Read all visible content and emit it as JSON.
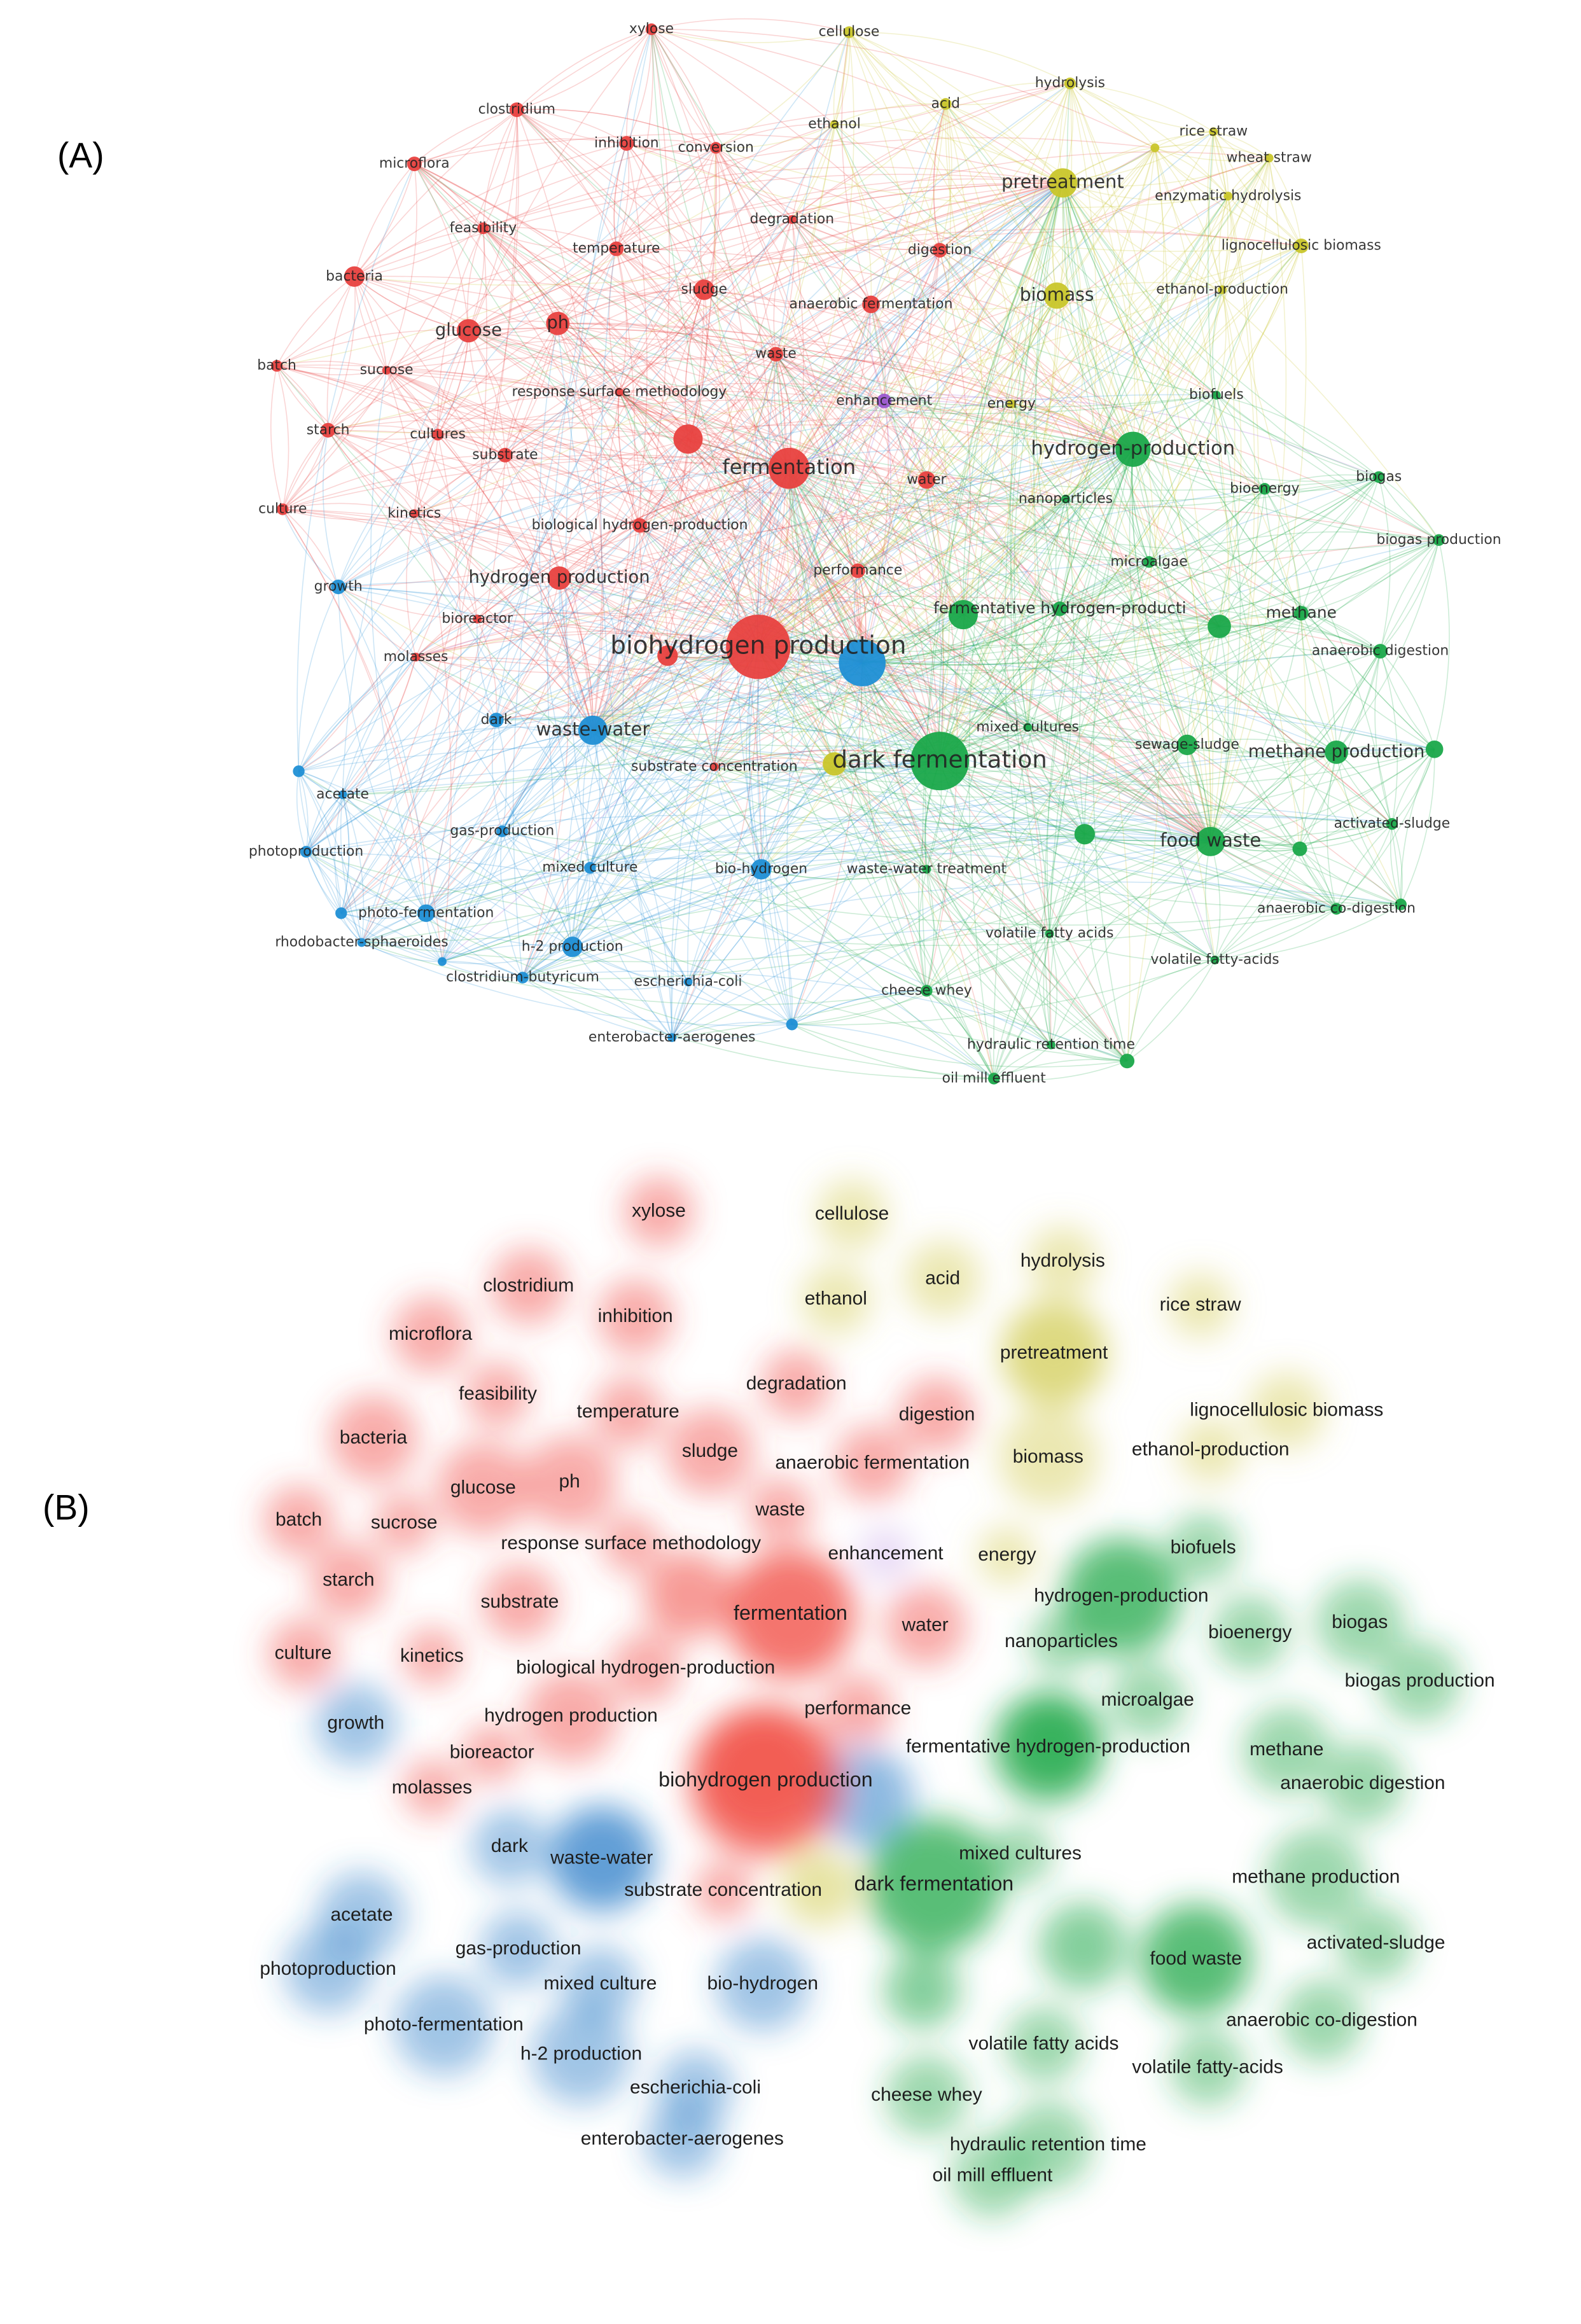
{
  "panels": [
    {
      "label": "(A)",
      "clusters": [
        {
          "color": "#e8413f",
          "nodes": [
            "xylose",
            "clostridium",
            "microflora",
            "inhibition",
            "conversion",
            "feasibility",
            "temperature",
            "bacteria",
            "glucose",
            "ph",
            "sludge",
            "digestion",
            "degradation",
            "anaerobic fermentation",
            "waste",
            "batch",
            "sucrose",
            "response surface methodology",
            "starch",
            "cultures",
            "substrate",
            "fermentation",
            "water",
            "culture",
            "kinetics",
            "biological hydrogen-production",
            "performance",
            "hydrogen production",
            "bioreactor",
            "molasses",
            "biohydrogen production",
            "substrate concentration"
          ]
        },
        {
          "color": "#1f8fd5",
          "nodes": [
            "growth",
            "dark",
            "waste-water",
            "acetate",
            "photoproduction",
            "gas-production",
            "mixed culture",
            "bio-hydrogen",
            "photo-fermentation",
            "rhodobacter-sphaeroides",
            "h-2 production",
            "clostridium-butyricum",
            "escherichia-coli",
            "enterobacter-aerogenes"
          ]
        },
        {
          "color": "#c9c62b",
          "nodes": [
            "cellulose",
            "hydrolysis",
            "acid",
            "ethanol",
            "rice straw",
            "wheat straw",
            "pretreatment",
            "enzymatic hydrolysis",
            "lignocellulosic biomass",
            "biomass",
            "ethanol-production",
            "energy"
          ]
        },
        {
          "color": "#9b59d0",
          "nodes": [
            "enhancement"
          ]
        },
        {
          "color": "#1aa84a",
          "nodes": [
            "biofuels",
            "hydrogen-production",
            "biogas",
            "bioenergy",
            "nanoparticles",
            "biogas production",
            "microalgae",
            "fermentative hydrogen-producti",
            "methane",
            "anaerobic digestion",
            "mixed cultures",
            "dark fermentation",
            "sewage-sludge",
            "methane production",
            "activated-sludge",
            "food waste",
            "waste-water treatment",
            "anaerobic co-digestion",
            "volatile fatty acids",
            "volatile fatty-acids",
            "cheese whey",
            "hydraulic retention time",
            "oil mill effluent"
          ]
        }
      ]
    },
    {
      "label": "(B)",
      "clusters": [
        {
          "color": "#f0483f",
          "nodes": [
            "xylose",
            "clostridium",
            "microflora",
            "inhibition",
            "feasibility",
            "degradation",
            "temperature",
            "digestion",
            "bacteria",
            "glucose",
            "ph",
            "sludge",
            "anaerobic fermentation",
            "waste",
            "batch",
            "sucrose",
            "response surface methodology",
            "starch",
            "substrate",
            "fermentation",
            "water",
            "culture",
            "kinetics",
            "biological hydrogen-production",
            "hydrogen production",
            "performance",
            "bioreactor",
            "molasses",
            "biohydrogen production",
            "substrate concentration"
          ]
        },
        {
          "color": "#2f7fc8",
          "nodes": [
            "growth",
            "dark",
            "waste-water",
            "acetate",
            "photoproduction",
            "gas-production",
            "mixed culture",
            "bio-hydrogen",
            "photo-fermentation",
            "h-2 production",
            "escherichia-coli",
            "enterobacter-aerogenes"
          ]
        },
        {
          "color": "#d2cc55",
          "nodes": [
            "cellulose",
            "hydrolysis",
            "acid",
            "ethanol",
            "rice straw",
            "pretreatment",
            "lignocellulosic biomass",
            "biomass",
            "ethanol-production",
            "energy"
          ]
        },
        {
          "color": "#c9a8e8",
          "nodes": [
            "enhancement"
          ]
        },
        {
          "color": "#1fa84a",
          "nodes": [
            "biofuels",
            "hydrogen-production",
            "biogas",
            "bioenergy",
            "nanoparticles",
            "biogas production",
            "microalgae",
            "fermentative hydrogen-production",
            "methane",
            "anaerobic digestion",
            "mixed cultures",
            "dark fermentation",
            "methane production",
            "activated-sludge",
            "food waste",
            "anaerobic co-digestion",
            "volatile fatty acids",
            "volatile fatty-acids",
            "cheese whey",
            "hydraulic retention time",
            "oil mill effluent"
          ]
        }
      ]
    }
  ]
}
